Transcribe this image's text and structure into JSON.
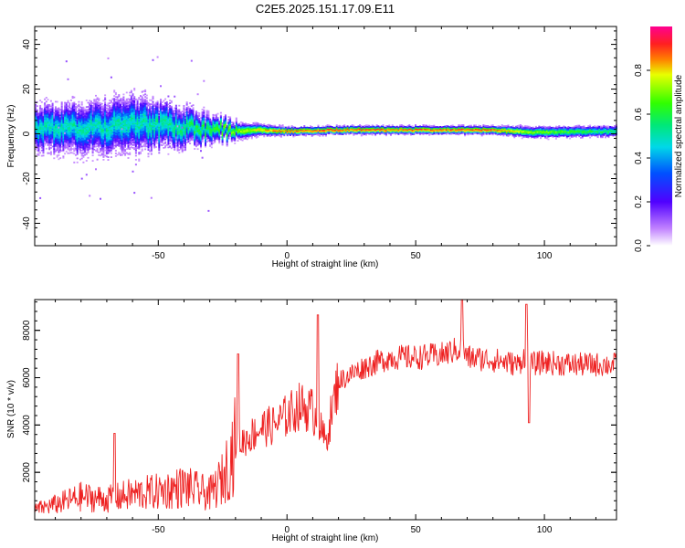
{
  "title": "C2E5.2025.151.17.09.E11",
  "chart_data": [
    {
      "type": "heatmap",
      "xlabel": "Height of straight line (km)",
      "ylabel": "Frequency (Hz)",
      "xlim": [
        -98,
        128
      ],
      "ylim": [
        -50,
        48
      ],
      "x_ticks": [
        -50,
        0,
        50,
        100
      ],
      "y_ticks": [
        -40,
        -20,
        0,
        20,
        40
      ],
      "colorbar": {
        "label": "Normalized spectral amplitude",
        "range": [
          0,
          1
        ],
        "ticks": [
          0.0,
          0.2,
          0.4,
          0.6,
          0.8
        ],
        "colors": [
          "#ffffff",
          "#9b00ff",
          "#0000ff",
          "#00c8ff",
          "#00ff00",
          "#c8ff00",
          "#ff3030",
          "#ff00a0"
        ]
      },
      "ridge": {
        "description_points_x": [
          -98,
          -80,
          -60,
          -40,
          -30,
          -20,
          -10,
          0,
          20,
          40,
          60,
          80,
          95,
          128
        ],
        "center_hz": [
          3,
          2,
          4,
          3,
          2,
          1,
          1.5,
          1,
          1.5,
          1.5,
          1.5,
          1.5,
          0.5,
          1
        ],
        "spread_hz": [
          8,
          9,
          10,
          7,
          5,
          3,
          2,
          1.5,
          1.5,
          1.5,
          1.5,
          1.5,
          2,
          2
        ],
        "peak_amplitude": [
          0.5,
          0.5,
          0.5,
          0.55,
          0.6,
          0.7,
          0.8,
          0.9,
          0.9,
          0.9,
          0.9,
          0.9,
          0.7,
          0.55
        ]
      }
    },
    {
      "type": "line",
      "xlabel": "Height of straight line (km)",
      "ylabel": "SNR (10 * v/v)",
      "xlim": [
        -98,
        128
      ],
      "ylim": [
        0,
        9300
      ],
      "x_ticks": [
        -50,
        0,
        50,
        100
      ],
      "y_ticks": [
        2000,
        4000,
        6000,
        8000
      ],
      "series": [
        {
          "color": "#ee2222",
          "x": [
            -98,
            -90,
            -80,
            -70,
            -60,
            -50,
            -40,
            -30,
            -25,
            -20,
            -15,
            -10,
            -5,
            0,
            5,
            10,
            15,
            20,
            30,
            40,
            50,
            60,
            68,
            70,
            80,
            90,
            93,
            95,
            100,
            110,
            120,
            128
          ],
          "values": [
            400,
            600,
            900,
            800,
            1000,
            1100,
            1300,
            1000,
            1600,
            3000,
            3400,
            3800,
            3900,
            4300,
            4700,
            4500,
            3200,
            5800,
            6400,
            6800,
            6800,
            6900,
            7200,
            6800,
            6700,
            6500,
            7000,
            6500,
            6600,
            6500,
            6500,
            6500
          ],
          "spikes": [
            {
              "x": -67,
              "y": 3650
            },
            {
              "x": -19,
              "y": 7000
            },
            {
              "x": 12,
              "y": 8650
            },
            {
              "x": 68,
              "y": 9300
            },
            {
              "x": 93,
              "y": 9100
            },
            {
              "x": 94,
              "y": 4100
            }
          ]
        }
      ]
    }
  ]
}
